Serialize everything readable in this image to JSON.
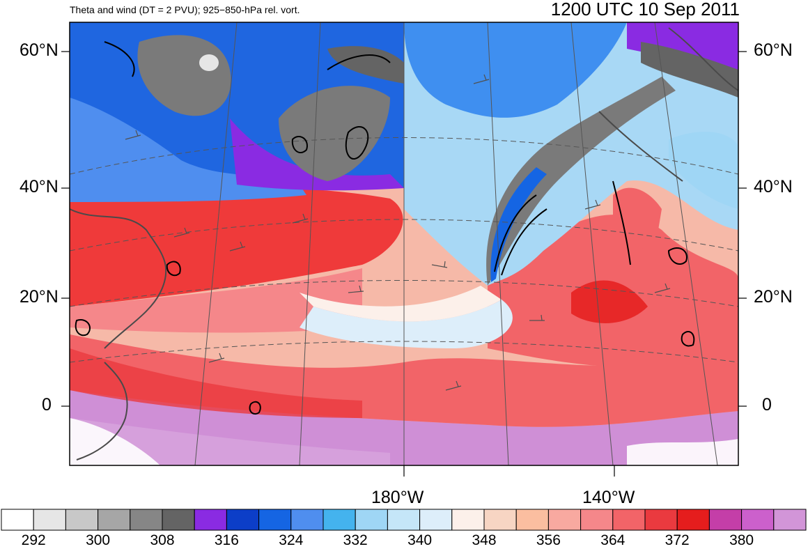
{
  "title": {
    "left": "Theta and wind (DT = 2 PVU); 925−850-hPa rel. vort.",
    "right": "1200 UTC 10 Sep 2011"
  },
  "map": {
    "lat_labels_left": [
      "60°N",
      "40°N",
      "20°N",
      "0"
    ],
    "lat_labels_right": [
      "60°N",
      "40°N",
      "20°N",
      "0"
    ],
    "lon_labels": [
      "180°W",
      "140°W"
    ],
    "field_colors": {
      "polar_gray": "#7a7a7a",
      "purple": "#8a2be2",
      "deep_blue": "#1f66e0",
      "mid_blue": "#3f8ff0",
      "light_blue": "#a8d8f5",
      "pale": "#f3e0d8",
      "pink": "#f79b8f",
      "red": "#ef3a3a",
      "magenta": "#cf8fd6"
    }
  },
  "colorbar": {
    "colors": [
      "#ffffff",
      "#e6e6e6",
      "#c8c8c8",
      "#a6a6a6",
      "#868686",
      "#646464",
      "#8a2be2",
      "#0c3ec8",
      "#1565e3",
      "#4f8eef",
      "#44b3ee",
      "#9fd6f5",
      "#c5e6f8",
      "#ddeefa",
      "#fcf0ea",
      "#f7d5c3",
      "#fbbea0",
      "#f8a9a0",
      "#f5878a",
      "#f26468",
      "#ea3a3f",
      "#e51d1d",
      "#c43ea8",
      "#cc60cc",
      "#d295d8"
    ],
    "labels": [
      "292",
      "300",
      "308",
      "316",
      "324",
      "332",
      "340",
      "348",
      "356",
      "364",
      "372",
      "380"
    ]
  }
}
